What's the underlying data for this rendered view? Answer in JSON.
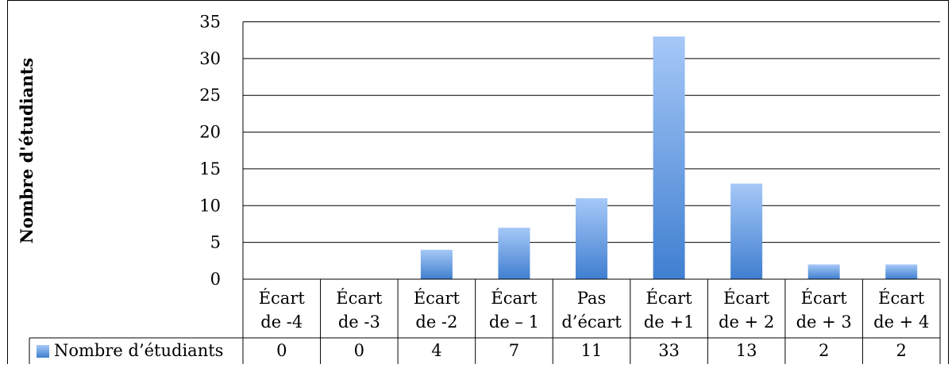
{
  "chart_data": {
    "type": "bar",
    "categories": [
      [
        "Écart",
        "de -4"
      ],
      [
        "Écart",
        "de -3"
      ],
      [
        "Écart",
        "de -2"
      ],
      [
        "Écart",
        "de – 1"
      ],
      [
        "Pas",
        "d’écart"
      ],
      [
        "Écart",
        "de +1"
      ],
      [
        "Écart",
        "de + 2"
      ],
      [
        "Écart",
        "de + 3"
      ],
      [
        "Écart",
        "de + 4"
      ]
    ],
    "series": [
      {
        "name": "Nombre d’étudiants",
        "values": [
          0,
          0,
          4,
          7,
          11,
          33,
          13,
          2,
          2
        ]
      }
    ],
    "value_labels": [
      "0",
      "0",
      "4",
      "7",
      "11",
      "33",
      "13",
      "2",
      "2"
    ],
    "ylabel": "Nombre d'étudiants",
    "ylim": [
      0,
      35
    ],
    "yticks": [
      0,
      5,
      10,
      15,
      20,
      25,
      30,
      35
    ],
    "grid": true,
    "legend": "data-table",
    "colors": {
      "bar_top": "#a6c8f7",
      "bar_bottom": "#3f7fd0",
      "axis": "#000000"
    }
  }
}
